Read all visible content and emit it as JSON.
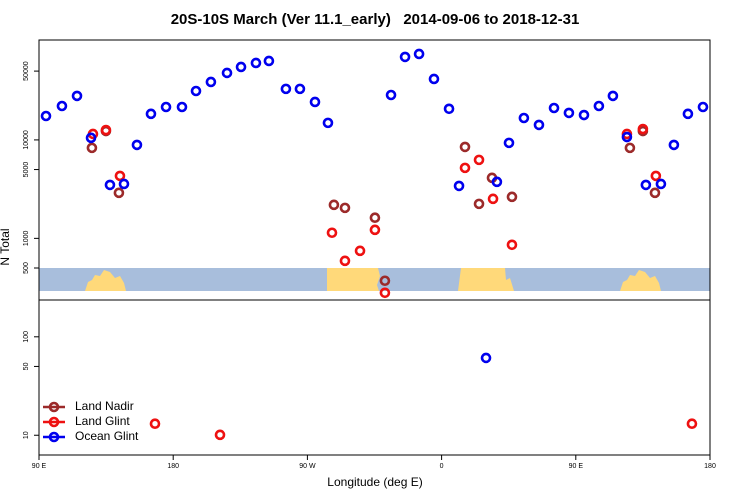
{
  "chart_data": {
    "type": "scatter",
    "title": "20S-10S March (Ver 11.1_early)   2014-09-06 to 2018-12-31",
    "x_label": "Longitude (deg E)",
    "y_label": "N Total",
    "xlim": [
      90,
      540
    ],
    "xticks": [
      {
        "value": 90,
        "label": "90 E"
      },
      {
        "value": 180,
        "label": "180"
      },
      {
        "value": 270,
        "label": "90 W"
      },
      {
        "value": 360,
        "label": "0"
      },
      {
        "value": 450,
        "label": "90 E"
      },
      {
        "value": 540,
        "label": "180"
      }
    ],
    "ylim": [
      6.3,
      103500
    ],
    "y_log": true,
    "yticks": [
      10,
      50,
      100,
      500,
      1000,
      5000,
      10000,
      50000
    ],
    "legend_position": "bottom-left",
    "series": [
      {
        "name": "Land Nadir",
        "color": "#9c2a2a",
        "x": [
          125.5,
          134.9,
          143.6,
          287.8,
          295.2,
          315.3,
          322.0,
          375.7,
          385.1,
          393.8,
          407.2,
          486.3,
          495.0,
          503.1
        ],
        "values": [
          8300,
          12300,
          2900,
          2190,
          2040,
          1620,
          371,
          8490,
          2240,
          4120,
          2640,
          8300,
          12300,
          2900
        ]
      },
      {
        "name": "Land Glint",
        "color": "#ee1111",
        "x": [
          126.2,
          134.9,
          144.3,
          286.5,
          295.2,
          305.3,
          315.3,
          322.0,
          375.7,
          385.1,
          394.5,
          407.2,
          484.3,
          495.0,
          503.7,
          167.8,
          211.4,
          527.9
        ],
        "values": [
          11500,
          12600,
          4310,
          1140,
          591,
          747,
          1220,
          280,
          5200,
          6270,
          2520,
          860,
          11500,
          12900,
          4310,
          13.1,
          10.1,
          13.1
        ]
      },
      {
        "name": "Ocean Glint",
        "color": "#0000ee",
        "x": [
          94.7,
          105.4,
          115.5,
          124.9,
          137.6,
          147.0,
          155.7,
          165.1,
          175.2,
          185.9,
          195.3,
          205.3,
          216.1,
          225.5,
          235.5,
          244.2,
          255.6,
          265.0,
          275.1,
          283.8,
          326.1,
          335.5,
          344.9,
          354.9,
          365.0,
          371.7,
          389.8,
          397.1,
          405.2,
          415.2,
          425.3,
          435.4,
          445.4,
          455.5,
          465.5,
          474.9,
          484.3,
          497.0,
          507.1,
          515.8,
          525.2,
          535.3
        ],
        "values": [
          17500,
          22100,
          28000,
          10500,
          3490,
          3570,
          8900,
          18400,
          21600,
          21600,
          31400,
          38800,
          47900,
          55100,
          60500,
          63400,
          33000,
          33000,
          24300,
          14900,
          28600,
          69700,
          74700,
          41600,
          20700,
          3410,
          61,
          3750,
          9330,
          16700,
          14200,
          21100,
          18800,
          17900,
          22100,
          28000,
          10700,
          3490,
          3570,
          8900,
          18400,
          21600
        ]
      }
    ]
  }
}
